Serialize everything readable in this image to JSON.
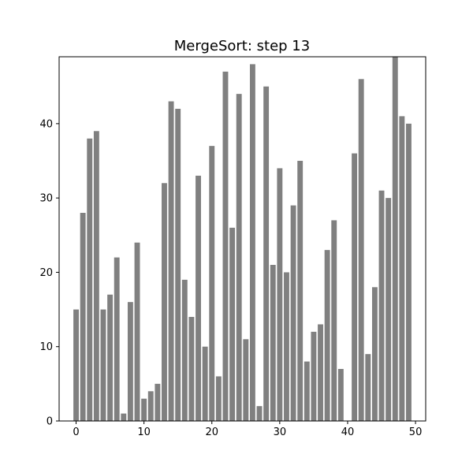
{
  "chart_data": {
    "type": "bar",
    "title": "MergeSort: step 13",
    "xlabel": "",
    "ylabel": "",
    "x": [
      0,
      1,
      2,
      3,
      4,
      5,
      6,
      7,
      8,
      9,
      10,
      11,
      12,
      13,
      14,
      15,
      16,
      17,
      18,
      19,
      20,
      21,
      22,
      23,
      24,
      25,
      26,
      27,
      28,
      29,
      30,
      31,
      32,
      33,
      34,
      35,
      36,
      37,
      38,
      39,
      40,
      41,
      42,
      43,
      44,
      45,
      46,
      47,
      48,
      49
    ],
    "values": [
      15,
      28,
      38,
      39,
      15,
      17,
      22,
      1,
      16,
      24,
      3,
      4,
      5,
      32,
      43,
      42,
      19,
      14,
      33,
      10,
      37,
      6,
      47,
      26,
      44,
      11,
      48,
      2,
      45,
      21,
      34,
      20,
      29,
      35,
      8,
      12,
      13,
      23,
      27,
      7,
      0,
      36,
      46,
      9,
      18,
      31,
      30,
      49,
      41,
      40
    ],
    "xlim": [
      -2.5,
      51.5
    ],
    "ylim": [
      0,
      49
    ],
    "xticks": [
      0,
      10,
      20,
      30,
      40,
      50
    ],
    "yticks": [
      0,
      10,
      20,
      30,
      40
    ],
    "bar_color": "#808080",
    "grid": false,
    "legend": "none"
  }
}
